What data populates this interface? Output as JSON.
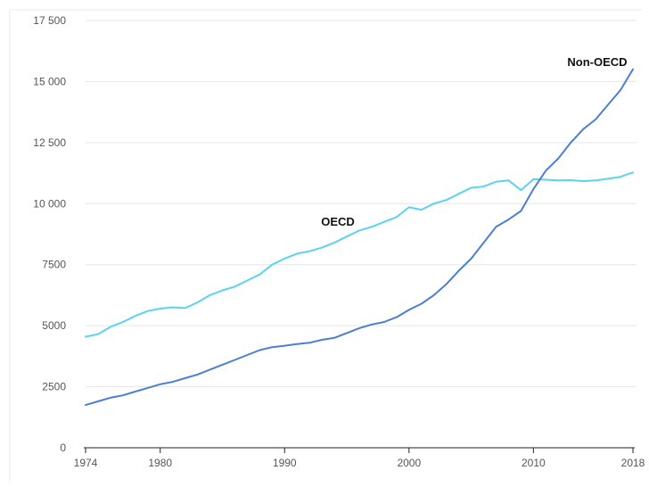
{
  "chart_data": {
    "type": "line",
    "title": "",
    "xlabel": "",
    "ylabel": "",
    "xlim": [
      1974,
      2018
    ],
    "ylim": [
      0,
      17500
    ],
    "x_ticks": [
      1974,
      1980,
      1990,
      2000,
      2010,
      2018
    ],
    "y_ticks": [
      0,
      2500,
      5000,
      7500,
      10000,
      12500,
      15000,
      17500
    ],
    "y_tick_labels": [
      "0",
      "2500",
      "5000",
      "7500",
      "10 000",
      "12 500",
      "15 000",
      "17 500"
    ],
    "grid": true,
    "legend": "none (series labeled directly on chart)",
    "x": [
      1974,
      1975,
      1976,
      1977,
      1978,
      1979,
      1980,
      1981,
      1982,
      1983,
      1984,
      1985,
      1986,
      1987,
      1988,
      1989,
      1990,
      1991,
      1992,
      1993,
      1994,
      1995,
      1996,
      1997,
      1998,
      1999,
      2000,
      2001,
      2002,
      2003,
      2004,
      2005,
      2006,
      2007,
      2008,
      2009,
      2010,
      2011,
      2012,
      2013,
      2014,
      2015,
      2016,
      2017,
      2018
    ],
    "series": [
      {
        "name": "OECD",
        "color": "#5bd2f0",
        "values": [
          4550,
          4650,
          4950,
          5150,
          5400,
          5600,
          5700,
          5750,
          5720,
          5950,
          6250,
          6450,
          6600,
          6850,
          7100,
          7500,
          7750,
          7950,
          8050,
          8200,
          8400,
          8650,
          8900,
          9050,
          9250,
          9450,
          9850,
          9750,
          10000,
          10150,
          10400,
          10650,
          10700,
          10900,
          10950,
          10550,
          11000,
          10980,
          10950,
          10960,
          10920,
          10950,
          11020,
          11100,
          11280
        ]
      },
      {
        "name": "Non-OECD",
        "color": "#4a7fd4",
        "values": [
          1750,
          1900,
          2050,
          2150,
          2300,
          2450,
          2600,
          2700,
          2850,
          3000,
          3200,
          3400,
          3600,
          3800,
          4000,
          4120,
          4180,
          4250,
          4300,
          4420,
          4500,
          4700,
          4900,
          5050,
          5150,
          5350,
          5650,
          5900,
          6250,
          6700,
          7250,
          7750,
          8400,
          9050,
          9350,
          9700,
          10600,
          11350,
          11850,
          12500,
          13050,
          13450,
          14050,
          14650,
          15500
        ]
      }
    ]
  }
}
